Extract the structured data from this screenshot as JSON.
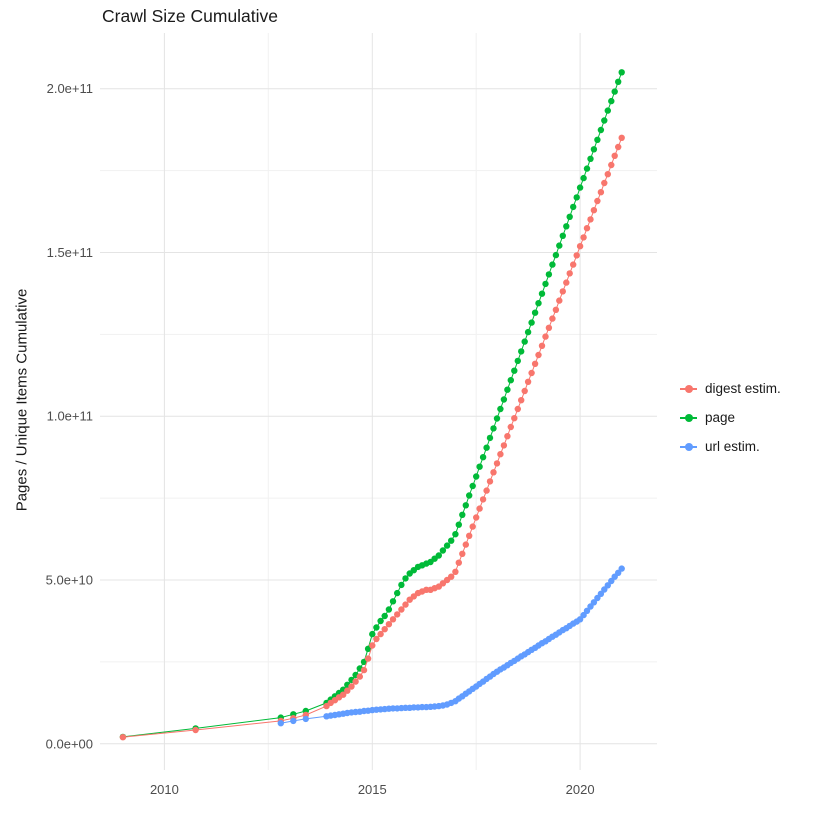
{
  "chart_data": {
    "type": "scatter",
    "title": "Crawl Size Cumulative",
    "xlabel": "",
    "ylabel": "Pages / Unique Items Cumulative",
    "legend_position": "right",
    "background": "#ffffff",
    "grid": {
      "major": "#e4e4e4",
      "minor": "#f1f1f1",
      "on": true
    },
    "xlim": [
      2008.45,
      2021.85
    ],
    "ylim": [
      -8000000000.0,
      217000000000.0
    ],
    "x_ticks": [
      {
        "v": 2010,
        "label": "2010"
      },
      {
        "v": 2015,
        "label": "2015"
      },
      {
        "v": 2020,
        "label": "2020"
      }
    ],
    "y_ticks": [
      {
        "v": 0,
        "label": "0.0e+00"
      },
      {
        "v": 50000000000.0,
        "label": "5.0e+10"
      },
      {
        "v": 100000000000.0,
        "label": "1.0e+11"
      },
      {
        "v": 150000000000.0,
        "label": "1.5e+11"
      },
      {
        "v": 200000000000.0,
        "label": "2.0e+11"
      }
    ],
    "x_minor": [
      2012.5,
      2017.5
    ],
    "y_minor": [
      25000000000.0,
      75000000000.0,
      125000000000.0,
      175000000000.0
    ],
    "draw_order": [
      1,
      0,
      2
    ],
    "series": [
      {
        "name": "digest estim.",
        "color": "#F8766D",
        "x": [
          2009,
          2010.75,
          2012.8,
          2013.1,
          2013.4,
          2013.9,
          2014,
          2014.1,
          2014.2,
          2014.3,
          2014.4,
          2014.5,
          2014.6,
          2014.7,
          2014.8,
          2014.9,
          2015,
          2015.1,
          2015.2,
          2015.3,
          2015.4,
          2015.5,
          2015.6,
          2015.7,
          2015.8,
          2015.9,
          2016,
          2016.1,
          2016.2,
          2016.3,
          2016.4,
          2016.5,
          2016.6,
          2016.7,
          2016.8,
          2016.9,
          2017,
          2017.083,
          2017.167,
          2017.25,
          2017.333,
          2017.417,
          2017.5,
          2017.583,
          2017.667,
          2017.75,
          2017.833,
          2017.917,
          2018,
          2018.083,
          2018.167,
          2018.25,
          2018.333,
          2018.417,
          2018.5,
          2018.583,
          2018.667,
          2018.75,
          2018.833,
          2018.917,
          2019,
          2019.083,
          2019.167,
          2019.25,
          2019.333,
          2019.417,
          2019.5,
          2019.583,
          2019.667,
          2019.75,
          2019.833,
          2019.917,
          2020,
          2020.083,
          2020.167,
          2020.25,
          2020.333,
          2020.417,
          2020.5,
          2020.583,
          2020.667,
          2020.75,
          2020.833,
          2020.917,
          2021
        ],
        "y": [
          2000000000.0,
          4200000000.0,
          7000000000.0,
          7800000000.0,
          8800000000.0,
          11500000000.0,
          12500000000.0,
          13300000000.0,
          14200000000.0,
          15000000000.0,
          16200000000.0,
          17500000000.0,
          19000000000.0,
          20500000000.0,
          22500000000.0,
          26000000000.0,
          30000000000.0,
          32000000000.0,
          33500000000.0,
          35000000000.0,
          36500000000.0,
          38000000000.0,
          39500000000.0,
          41000000000.0,
          42500000000.0,
          44000000000.0,
          45000000000.0,
          46000000000.0,
          46500000000.0,
          47000000000.0,
          47000000000.0,
          47500000000.0,
          48000000000.0,
          49000000000.0,
          50000000000.0,
          51000000000.0,
          52500000000.0,
          55300000000.0,
          58000000000.0,
          60800000000.0,
          63500000000.0,
          66300000000.0,
          69100000000.0,
          71800000000.0,
          74600000000.0,
          77300000000.0,
          80100000000.0,
          82900000000.0,
          85600000000.0,
          88400000000.0,
          91100000000.0,
          93900000000.0,
          96700000000.0,
          99400000000.0,
          102200000000.0,
          104900000000.0,
          107700000000.0,
          110500000000.0,
          113200000000.0,
          116000000000.0,
          118700000000.0,
          121500000000.0,
          124300000000.0,
          127000000000.0,
          129800000000.0,
          132500000000.0,
          135300000000.0,
          138100000000.0,
          140800000000.0,
          143600000000.0,
          146300000000.0,
          149100000000.0,
          151900000000.0,
          154600000000.0,
          157400000000.0,
          160100000000.0,
          162900000000.0,
          165700000000.0,
          168400000000.0,
          171200000000.0,
          173900000000.0,
          176700000000.0,
          179500000000.0,
          182200000000.0,
          185000000000.0
        ]
      },
      {
        "name": "page",
        "color": "#00BA38",
        "x": [
          2009,
          2010.75,
          2012.8,
          2013.1,
          2013.4,
          2013.9,
          2014,
          2014.1,
          2014.2,
          2014.3,
          2014.4,
          2014.5,
          2014.6,
          2014.7,
          2014.8,
          2014.9,
          2015,
          2015.1,
          2015.2,
          2015.3,
          2015.4,
          2015.5,
          2015.6,
          2015.7,
          2015.8,
          2015.9,
          2016,
          2016.1,
          2016.2,
          2016.3,
          2016.4,
          2016.5,
          2016.6,
          2016.7,
          2016.8,
          2016.9,
          2017,
          2017.083,
          2017.167,
          2017.25,
          2017.333,
          2017.417,
          2017.5,
          2017.583,
          2017.667,
          2017.75,
          2017.833,
          2017.917,
          2018,
          2018.083,
          2018.167,
          2018.25,
          2018.333,
          2018.417,
          2018.5,
          2018.583,
          2018.667,
          2018.75,
          2018.833,
          2018.917,
          2019,
          2019.083,
          2019.167,
          2019.25,
          2019.333,
          2019.417,
          2019.5,
          2019.583,
          2019.667,
          2019.75,
          2019.833,
          2019.917,
          2020,
          2020.083,
          2020.167,
          2020.25,
          2020.333,
          2020.417,
          2020.5,
          2020.583,
          2020.667,
          2020.75,
          2020.833,
          2020.917,
          2021
        ],
        "y": [
          2100000000.0,
          4700000000.0,
          8000000000.0,
          9000000000.0,
          10000000000.0,
          12500000000.0,
          13500000000.0,
          14500000000.0,
          15500000000.0,
          16500000000.0,
          18000000000.0,
          19500000000.0,
          21000000000.0,
          23000000000.0,
          25000000000.0,
          29000000000.0,
          33500000000.0,
          35500000000.0,
          37500000000.0,
          39000000000.0,
          41000000000.0,
          43500000000.0,
          46000000000.0,
          48500000000.0,
          50500000000.0,
          52000000000.0,
          53000000000.0,
          54000000000.0,
          54500000000.0,
          55000000000.0,
          55500000000.0,
          56500000000.0,
          57500000000.0,
          59000000000.0,
          60500000000.0,
          62000000000.0,
          64000000000.0,
          66900000000.0,
          69900000000.0,
          72800000000.0,
          75800000000.0,
          78700000000.0,
          81600000000.0,
          84600000000.0,
          87500000000.0,
          90400000000.0,
          93400000000.0,
          96300000000.0,
          99300000000.0,
          102200000000.0,
          105100000000.0,
          108100000000.0,
          111000000000.0,
          113900000000.0,
          116900000000.0,
          119800000000.0,
          122800000000.0,
          125700000000.0,
          128600000000.0,
          131600000000.0,
          134500000000.0,
          137400000000.0,
          140400000000.0,
          143300000000.0,
          146300000000.0,
          149200000000.0,
          152100000000.0,
          155100000000.0,
          158000000000.0,
          160900000000.0,
          163900000000.0,
          166800000000.0,
          169800000000.0,
          172700000000.0,
          175600000000.0,
          178600000000.0,
          181500000000.0,
          184400000000.0,
          187400000000.0,
          190300000000.0,
          193300000000.0,
          196200000000.0,
          199100000000.0,
          202100000000.0,
          205000000000.0
        ]
      },
      {
        "name": "url estim.",
        "color": "#619CFF",
        "x": [
          2012.8,
          2013.1,
          2013.4,
          2013.9,
          2014,
          2014.1,
          2014.2,
          2014.3,
          2014.4,
          2014.5,
          2014.6,
          2014.7,
          2014.8,
          2014.9,
          2015,
          2015.1,
          2015.2,
          2015.3,
          2015.4,
          2015.5,
          2015.6,
          2015.7,
          2015.8,
          2015.9,
          2016,
          2016.1,
          2016.2,
          2016.3,
          2016.4,
          2016.5,
          2016.6,
          2016.7,
          2016.8,
          2016.9,
          2017,
          2017.083,
          2017.167,
          2017.25,
          2017.333,
          2017.417,
          2017.5,
          2017.583,
          2017.667,
          2017.75,
          2017.833,
          2017.917,
          2018,
          2018.083,
          2018.167,
          2018.25,
          2018.333,
          2018.417,
          2018.5,
          2018.583,
          2018.667,
          2018.75,
          2018.833,
          2018.917,
          2019,
          2019.083,
          2019.167,
          2019.25,
          2019.333,
          2019.417,
          2019.5,
          2019.583,
          2019.667,
          2019.75,
          2019.833,
          2019.917,
          2020,
          2020.083,
          2020.167,
          2020.25,
          2020.333,
          2020.417,
          2020.5,
          2020.583,
          2020.667,
          2020.75,
          2020.833,
          2020.917,
          2021
        ],
        "y": [
          6300000000.0,
          7000000000.0,
          7600000000.0,
          8400000000.0,
          8600000000.0,
          8800000000.0,
          9000000000.0,
          9200000000.0,
          9400000000.0,
          9600000000.0,
          9700000000.0,
          9800000000.0,
          10000000000.0,
          10100000000.0,
          10300000000.0,
          10400000000.0,
          10500000000.0,
          10600000000.0,
          10700000000.0,
          10800000000.0,
          10800000000.0,
          10900000000.0,
          11000000000.0,
          11000000000.0,
          11100000000.0,
          11100000000.0,
          11200000000.0,
          11200000000.0,
          11300000000.0,
          11400000000.0,
          11500000000.0,
          11700000000.0,
          12000000000.0,
          12500000000.0,
          13000000000.0,
          13800000000.0,
          14500000000.0,
          15300000000.0,
          16000000000.0,
          16800000000.0,
          17500000000.0,
          18300000000.0,
          19000000000.0,
          19800000000.0,
          20500000000.0,
          21300000000.0,
          22000000000.0,
          22700000000.0,
          23300000000.0,
          24000000000.0,
          24700000000.0,
          25300000000.0,
          26000000000.0,
          26700000000.0,
          27300000000.0,
          28000000000.0,
          28700000000.0,
          29300000000.0,
          30000000000.0,
          30700000000.0,
          31300000000.0,
          32000000000.0,
          32700000000.0,
          33300000000.0,
          34000000000.0,
          34700000000.0,
          35300000000.0,
          36000000000.0,
          36700000000.0,
          37300000000.0,
          38000000000.0,
          39300000000.0,
          40600000000.0,
          41900000000.0,
          43200000000.0,
          44500000000.0,
          45800000000.0,
          47100000000.0,
          48400000000.0,
          49700000000.0,
          51000000000.0,
          52200000000.0,
          53500000000.0
        ]
      }
    ]
  }
}
